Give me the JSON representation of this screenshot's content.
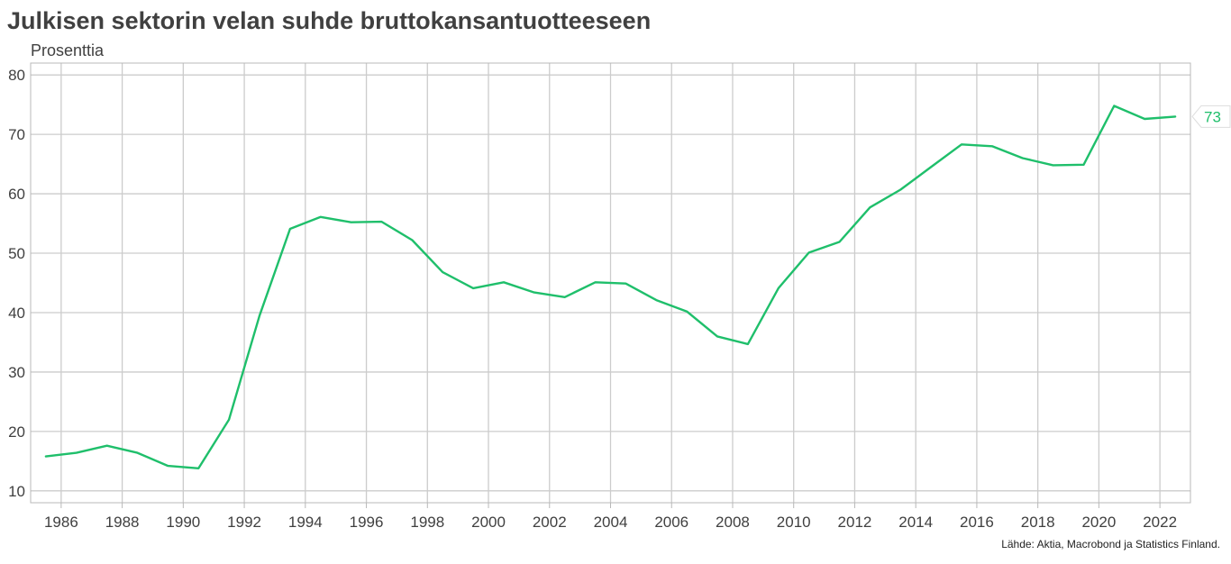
{
  "title": "Julkisen sektorin velan suhde bruttokansantuotteeseen",
  "unit_label": "Prosenttia",
  "source": "Lähde: Aktia, Macrobond ja Statistics Finland.",
  "end_label": "73",
  "colors": {
    "line": "#1fbf6b",
    "grid": "#cccccc",
    "text": "#404040",
    "frame": "#b8b8b8"
  },
  "chart_data": {
    "type": "line",
    "title": "Julkisen sektorin velan suhde bruttokansantuotteeseen",
    "xlabel": "",
    "ylabel": "Prosenttia",
    "xlim": [
      1985.0,
      2023.0
    ],
    "ylim": [
      8.0,
      82.0
    ],
    "yticks": [
      10,
      20,
      30,
      40,
      50,
      60,
      70,
      80
    ],
    "xticks": [
      1986,
      1988,
      1990,
      1992,
      1994,
      1996,
      1998,
      2000,
      2002,
      2004,
      2006,
      2008,
      2010,
      2012,
      2014,
      2016,
      2018,
      2020,
      2022
    ],
    "grid": true,
    "legend": "none",
    "series": [
      {
        "name": "",
        "x": [
          1985.5,
          1986.5,
          1987.5,
          1988.5,
          1989.5,
          1990.5,
          1991.5,
          1992.5,
          1993.5,
          1994.5,
          1995.5,
          1996.5,
          1997.5,
          1998.5,
          1999.5,
          2000.5,
          2001.5,
          2002.5,
          2003.5,
          2004.5,
          2005.5,
          2006.5,
          2007.5,
          2008.5,
          2009.5,
          2010.5,
          2011.5,
          2012.5,
          2013.5,
          2014.5,
          2015.5,
          2016.5,
          2017.5,
          2018.5,
          2019.5,
          2020.5,
          2021.5,
          2022.5
        ],
        "values": [
          15.8,
          16.4,
          17.6,
          16.4,
          14.2,
          13.8,
          22.0,
          39.5,
          54.1,
          56.1,
          55.2,
          55.3,
          52.2,
          46.8,
          44.1,
          45.1,
          43.4,
          42.6,
          45.1,
          44.9,
          42.1,
          40.2,
          36.0,
          34.7,
          44.1,
          50.1,
          51.9,
          57.7,
          60.7,
          64.5,
          68.3,
          68.0,
          66.0,
          64.8,
          64.9,
          74.8,
          72.6,
          73.0
        ]
      }
    ]
  }
}
